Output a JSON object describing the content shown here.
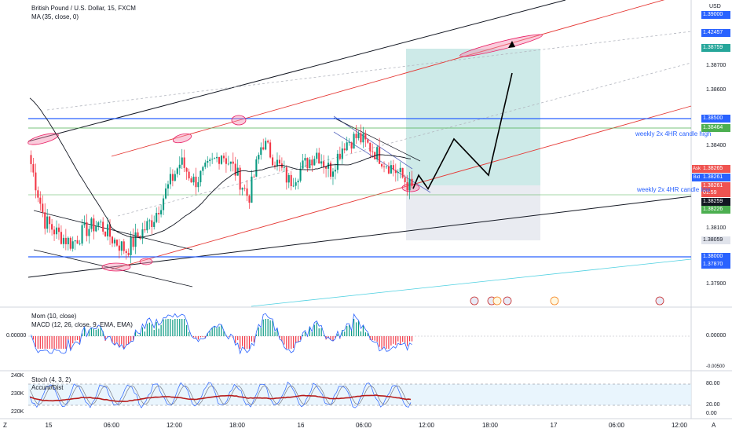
{
  "header": {
    "title": "British Pound / U.S. Dollar, 15, FXCM",
    "ma": "MA (35, close, 0)",
    "currency": "USD"
  },
  "price_axis": {
    "levels": [
      "1.39000",
      "1.38700",
      "1.38600",
      "1.38400",
      "1.38100",
      "1.37900"
    ],
    "badges": {
      "b_139000": "1.39000",
      "b_142457": "1.42457",
      "b_138759": "1.38759",
      "b_138500": "1.38500",
      "b_138464": "1.38464",
      "ask": "1.38265",
      "bid": "1.38261",
      "last": "1.38261",
      "countdown": "01:59",
      "b_138259": "1.38259",
      "b_138226": "1.38226",
      "b_138059": "1.38059",
      "b_138000": "1.38000",
      "b_137870": "1.37870"
    },
    "ask_label": "Ask",
    "bid_label": "Bid"
  },
  "annotations": {
    "high": "weekly 2x 4HR candle high",
    "low": "weekly 2x 4HR candle low"
  },
  "indicators": {
    "mom": "Mom (10, close)",
    "macd": "MACD (12, 26, close, 9, EMA, EMA)",
    "mom_value": "0.00000",
    "mom_tick_top": "0.00000",
    "mom_tick_bottom": "-0.00500",
    "stoch": "Stoch (4, 3, 2)",
    "accum": "Accum/Dist",
    "vol_left": [
      "240K",
      "230K",
      "220K"
    ],
    "stoch_right": [
      "80.00",
      "20.00",
      "0.00"
    ]
  },
  "time_axis": [
    "15",
    "06:00",
    "12:00",
    "18:00",
    "16",
    "06:00",
    "12:00",
    "18:00",
    "17",
    "06:00",
    "12:00"
  ],
  "corner": {
    "left": "Z",
    "right": "A"
  },
  "chart_data": {
    "type": "line",
    "title": "British Pound / U.S. Dollar, 15, FXCM",
    "ylim": [
      1.3775,
      1.3905
    ],
    "x": [
      "15",
      "06:00",
      "12:00",
      "18:00",
      "16",
      "06:00"
    ],
    "series": [
      {
        "name": "MA (35, close, 0)",
        "values": [
          1.3866,
          1.3814,
          1.3812,
          1.3829,
          1.3841,
          1.3839
        ]
      }
    ],
    "candles_close": [
      1.3837,
      1.3812,
      1.3806,
      1.3802,
      1.3808,
      1.3811,
      1.3804,
      1.3799,
      1.3806,
      1.3813,
      1.3826,
      1.3838,
      1.3829,
      1.3835,
      1.3842,
      1.3834,
      1.3822,
      1.3847,
      1.3838,
      1.3829,
      1.3836,
      1.3842,
      1.3834,
      1.3846,
      1.3849,
      1.3844,
      1.3838,
      1.3833,
      1.3826
    ],
    "levels": [
      1.385,
      1.38464,
      1.38
    ],
    "projection": [
      1.38261,
      1.3832,
      1.3826,
      1.3848,
      1.3832,
      1.3877
    ],
    "trade_box": {
      "target": 1.38759,
      "entry": 1.38226,
      "stop": 1.38059
    }
  }
}
